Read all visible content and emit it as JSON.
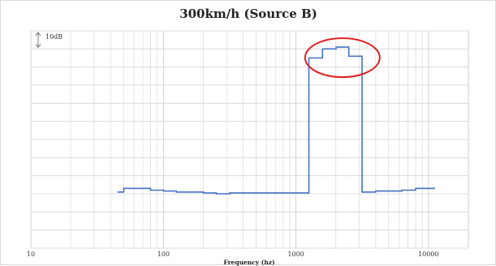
{
  "chart_data": {
    "type": "line",
    "title": "300km/h (Source B)",
    "xlabel": "Frequency (hz)",
    "ylabel": "",
    "x_scale": "log",
    "xlim": [
      10,
      20000
    ],
    "x_tick_labels": [
      "10",
      "100",
      "1000",
      "10000"
    ],
    "y_scale_note": "10dB",
    "y_step_db": 10,
    "ylim_db": [
      0,
      120
    ],
    "grid": true,
    "line_style": "step",
    "series": [
      {
        "color": "#4472c4",
        "x": [
          45,
          56,
          71,
          90,
          112,
          140,
          180,
          224,
          280,
          355,
          450,
          560,
          710,
          900,
          1120,
          1400,
          1800,
          2240,
          2800,
          3550,
          4500,
          5600,
          7100,
          9000,
          11200
        ],
        "y_db": [
          31,
          33,
          33,
          32,
          31.5,
          31,
          31,
          30.5,
          30,
          30.5,
          30.5,
          30.5,
          30.5,
          30.5,
          30.5,
          105,
          110,
          111,
          106,
          31,
          31.5,
          31.5,
          32,
          33,
          33
        ]
      }
    ],
    "annotation": {
      "shape": "ellipse",
      "color": "#e02020",
      "target": "peak"
    }
  }
}
